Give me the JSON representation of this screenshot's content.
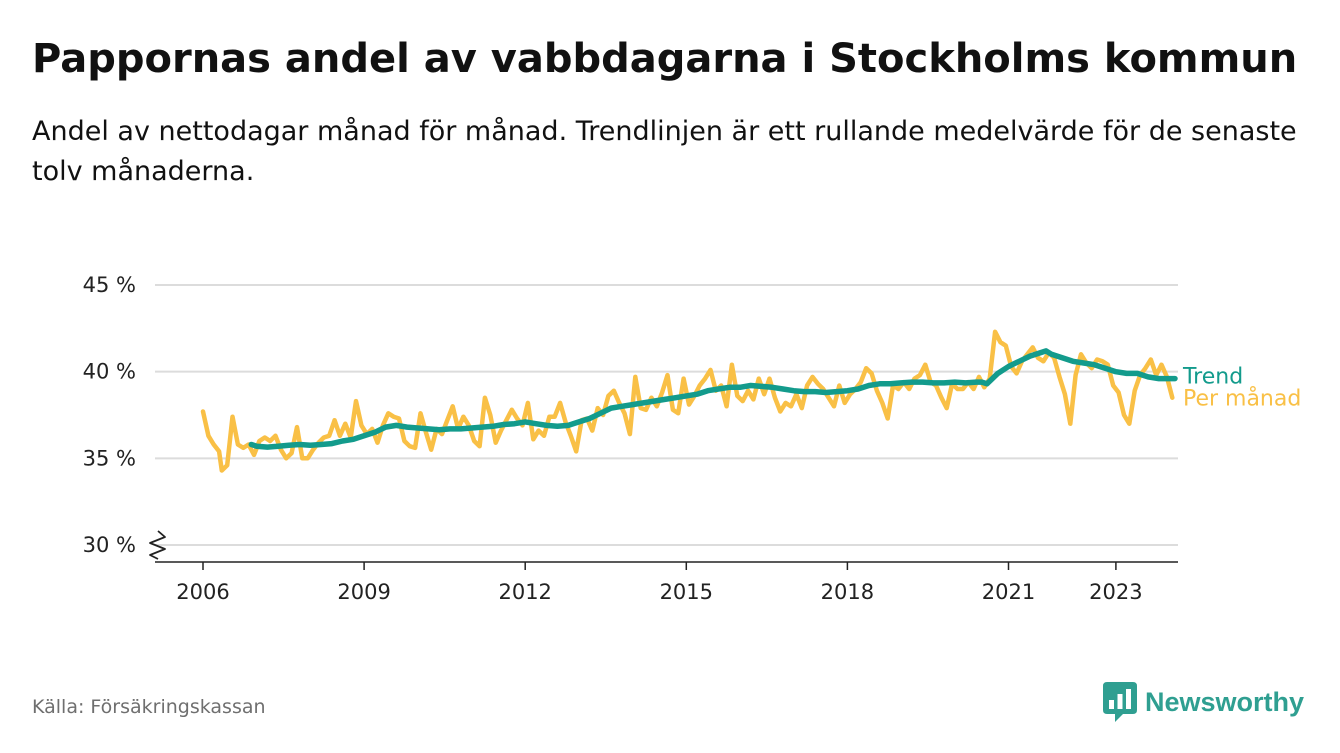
{
  "title": "Pappornas andel av vabbdagarna i Stockholms kommun",
  "subtitle": "Andel av nettodagar månad för månad. Trendlinjen är ett rullande medelvärde för de senaste tolv månaderna.",
  "source": "Källa: Försäkringskassan",
  "brand": {
    "name": "Newsworthy",
    "logo_icon": "bar-chart-icon",
    "color": "#2f9f91"
  },
  "colors": {
    "monthly": "#f9c046",
    "trend": "#139b8c",
    "grid": "#dcdcdc",
    "axis": "#222222"
  },
  "chart_data": {
    "type": "line",
    "title": "Pappornas andel av vabbdagarna i Stockholms kommun",
    "xlabel": "",
    "ylabel": "",
    "x_range": [
      2005.55,
      2024.0
    ],
    "ylim": [
      30,
      45
    ],
    "y_axis_break": true,
    "grid": "horizontal",
    "y_ticks": [
      {
        "value": 30,
        "label": "30 %"
      },
      {
        "value": 35,
        "label": "35 %"
      },
      {
        "value": 40,
        "label": "40 %"
      },
      {
        "value": 45,
        "label": "45 %"
      }
    ],
    "x_ticks": [
      {
        "value": 2006,
        "label": "2006"
      },
      {
        "value": 2009,
        "label": "2009"
      },
      {
        "value": 2012,
        "label": "2012"
      },
      {
        "value": 2015,
        "label": "2015"
      },
      {
        "value": 2018,
        "label": "2018"
      },
      {
        "value": 2021,
        "label": "2021"
      },
      {
        "value": 2023,
        "label": "2023"
      }
    ],
    "series": [
      {
        "name": "Per månad",
        "label": "Per månad",
        "points": [
          [
            2006.0,
            37.7
          ],
          [
            2006.1,
            36.3
          ],
          [
            2006.2,
            35.8
          ],
          [
            2006.3,
            35.4
          ],
          [
            2006.35,
            34.3
          ],
          [
            2006.45,
            34.6
          ],
          [
            2006.55,
            37.4
          ],
          [
            2006.65,
            35.8
          ],
          [
            2006.75,
            35.6
          ],
          [
            2006.85,
            35.8
          ],
          [
            2006.95,
            35.2
          ],
          [
            2007.05,
            36.0
          ],
          [
            2007.15,
            36.2
          ],
          [
            2007.25,
            36.0
          ],
          [
            2007.35,
            36.3
          ],
          [
            2007.45,
            35.5
          ],
          [
            2007.55,
            35.0
          ],
          [
            2007.65,
            35.3
          ],
          [
            2007.75,
            36.8
          ],
          [
            2007.85,
            35.0
          ],
          [
            2007.95,
            35.0
          ],
          [
            2008.05,
            35.5
          ],
          [
            2008.15,
            35.9
          ],
          [
            2008.25,
            36.2
          ],
          [
            2008.35,
            36.3
          ],
          [
            2008.45,
            37.2
          ],
          [
            2008.55,
            36.3
          ],
          [
            2008.65,
            37.0
          ],
          [
            2008.75,
            36.2
          ],
          [
            2008.85,
            38.3
          ],
          [
            2008.95,
            36.9
          ],
          [
            2009.05,
            36.4
          ],
          [
            2009.15,
            36.7
          ],
          [
            2009.25,
            35.9
          ],
          [
            2009.35,
            36.9
          ],
          [
            2009.45,
            37.6
          ],
          [
            2009.55,
            37.4
          ],
          [
            2009.65,
            37.3
          ],
          [
            2009.75,
            36.0
          ],
          [
            2009.85,
            35.7
          ],
          [
            2009.95,
            35.6
          ],
          [
            2010.05,
            37.6
          ],
          [
            2010.15,
            36.5
          ],
          [
            2010.25,
            35.5
          ],
          [
            2010.35,
            36.7
          ],
          [
            2010.45,
            36.4
          ],
          [
            2010.55,
            37.2
          ],
          [
            2010.65,
            38.0
          ],
          [
            2010.75,
            36.7
          ],
          [
            2010.85,
            37.4
          ],
          [
            2010.95,
            36.9
          ],
          [
            2011.05,
            36.0
          ],
          [
            2011.15,
            35.7
          ],
          [
            2011.25,
            38.5
          ],
          [
            2011.35,
            37.5
          ],
          [
            2011.45,
            35.9
          ],
          [
            2011.55,
            36.6
          ],
          [
            2011.65,
            37.2
          ],
          [
            2011.75,
            37.8
          ],
          [
            2011.85,
            37.3
          ],
          [
            2011.95,
            36.9
          ],
          [
            2012.05,
            38.2
          ],
          [
            2012.15,
            36.1
          ],
          [
            2012.25,
            36.6
          ],
          [
            2012.35,
            36.3
          ],
          [
            2012.45,
            37.4
          ],
          [
            2012.55,
            37.4
          ],
          [
            2012.65,
            38.2
          ],
          [
            2012.75,
            37.1
          ],
          [
            2012.85,
            36.3
          ],
          [
            2012.95,
            35.4
          ],
          [
            2013.05,
            37.2
          ],
          [
            2013.15,
            37.3
          ],
          [
            2013.25,
            36.6
          ],
          [
            2013.35,
            37.9
          ],
          [
            2013.45,
            37.5
          ],
          [
            2013.55,
            38.6
          ],
          [
            2013.65,
            38.9
          ],
          [
            2013.75,
            38.2
          ],
          [
            2013.85,
            37.6
          ],
          [
            2013.95,
            36.4
          ],
          [
            2014.05,
            39.7
          ],
          [
            2014.15,
            37.9
          ],
          [
            2014.25,
            37.8
          ],
          [
            2014.35,
            38.5
          ],
          [
            2014.45,
            38.0
          ],
          [
            2014.55,
            38.8
          ],
          [
            2014.65,
            39.8
          ],
          [
            2014.75,
            37.8
          ],
          [
            2014.85,
            37.6
          ],
          [
            2014.95,
            39.6
          ],
          [
            2015.05,
            38.1
          ],
          [
            2015.15,
            38.6
          ],
          [
            2015.25,
            39.2
          ],
          [
            2015.35,
            39.6
          ],
          [
            2015.45,
            40.1
          ],
          [
            2015.55,
            38.9
          ],
          [
            2015.65,
            39.2
          ],
          [
            2015.75,
            38.0
          ],
          [
            2015.85,
            40.4
          ],
          [
            2015.95,
            38.6
          ],
          [
            2016.05,
            38.3
          ],
          [
            2016.15,
            38.9
          ],
          [
            2016.25,
            38.4
          ],
          [
            2016.35,
            39.6
          ],
          [
            2016.45,
            38.7
          ],
          [
            2016.55,
            39.6
          ],
          [
            2016.65,
            38.5
          ],
          [
            2016.75,
            37.7
          ],
          [
            2016.85,
            38.2
          ],
          [
            2016.95,
            38.0
          ],
          [
            2017.05,
            38.7
          ],
          [
            2017.15,
            37.9
          ],
          [
            2017.25,
            39.2
          ],
          [
            2017.35,
            39.7
          ],
          [
            2017.45,
            39.3
          ],
          [
            2017.55,
            39.0
          ],
          [
            2017.65,
            38.5
          ],
          [
            2017.75,
            38.0
          ],
          [
            2017.85,
            39.2
          ],
          [
            2017.95,
            38.2
          ],
          [
            2018.05,
            38.7
          ],
          [
            2018.15,
            39.0
          ],
          [
            2018.25,
            39.4
          ],
          [
            2018.35,
            40.2
          ],
          [
            2018.45,
            39.9
          ],
          [
            2018.55,
            38.9
          ],
          [
            2018.65,
            38.2
          ],
          [
            2018.75,
            37.3
          ],
          [
            2018.85,
            39.2
          ],
          [
            2018.95,
            39.0
          ],
          [
            2019.05,
            39.4
          ],
          [
            2019.15,
            39.0
          ],
          [
            2019.25,
            39.6
          ],
          [
            2019.35,
            39.8
          ],
          [
            2019.45,
            40.4
          ],
          [
            2019.55,
            39.4
          ],
          [
            2019.65,
            39.2
          ],
          [
            2019.75,
            38.5
          ],
          [
            2019.85,
            37.9
          ],
          [
            2019.95,
            39.3
          ],
          [
            2020.05,
            39.0
          ],
          [
            2020.15,
            39.0
          ],
          [
            2020.25,
            39.4
          ],
          [
            2020.35,
            39.0
          ],
          [
            2020.45,
            39.7
          ],
          [
            2020.55,
            39.1
          ],
          [
            2020.65,
            39.6
          ],
          [
            2020.75,
            42.3
          ],
          [
            2020.85,
            41.7
          ],
          [
            2020.95,
            41.5
          ],
          [
            2021.05,
            40.3
          ],
          [
            2021.15,
            39.9
          ],
          [
            2021.25,
            40.6
          ],
          [
            2021.35,
            41.0
          ],
          [
            2021.45,
            41.4
          ],
          [
            2021.55,
            40.8
          ],
          [
            2021.65,
            40.6
          ],
          [
            2021.75,
            41.1
          ],
          [
            2021.85,
            40.8
          ],
          [
            2021.95,
            39.7
          ],
          [
            2022.05,
            38.7
          ],
          [
            2022.15,
            37.0
          ],
          [
            2022.25,
            39.8
          ],
          [
            2022.35,
            41.0
          ],
          [
            2022.45,
            40.5
          ],
          [
            2022.55,
            40.2
          ],
          [
            2022.65,
            40.7
          ],
          [
            2022.75,
            40.6
          ],
          [
            2022.85,
            40.4
          ],
          [
            2022.95,
            39.2
          ],
          [
            2023.05,
            38.8
          ],
          [
            2023.15,
            37.5
          ],
          [
            2023.25,
            37.0
          ],
          [
            2023.35,
            38.9
          ],
          [
            2023.45,
            39.8
          ],
          [
            2023.55,
            40.2
          ],
          [
            2023.65,
            40.7
          ],
          [
            2023.75,
            39.8
          ],
          [
            2023.85,
            40.4
          ],
          [
            2023.95,
            39.7
          ],
          [
            2024.05,
            38.5
          ]
        ]
      },
      {
        "name": "Trend",
        "label": "Trend",
        "points": [
          [
            2006.9,
            35.8
          ],
          [
            2007.0,
            35.7
          ],
          [
            2007.2,
            35.65
          ],
          [
            2007.4,
            35.7
          ],
          [
            2007.6,
            35.75
          ],
          [
            2007.8,
            35.8
          ],
          [
            2008.0,
            35.75
          ],
          [
            2008.2,
            35.8
          ],
          [
            2008.4,
            35.85
          ],
          [
            2008.6,
            36.0
          ],
          [
            2008.8,
            36.1
          ],
          [
            2009.0,
            36.3
          ],
          [
            2009.2,
            36.5
          ],
          [
            2009.4,
            36.8
          ],
          [
            2009.6,
            36.9
          ],
          [
            2009.8,
            36.8
          ],
          [
            2010.0,
            36.75
          ],
          [
            2010.2,
            36.7
          ],
          [
            2010.4,
            36.65
          ],
          [
            2010.6,
            36.7
          ],
          [
            2010.8,
            36.7
          ],
          [
            2011.0,
            36.75
          ],
          [
            2011.2,
            36.8
          ],
          [
            2011.4,
            36.85
          ],
          [
            2011.6,
            36.95
          ],
          [
            2011.8,
            37.0
          ],
          [
            2012.0,
            37.1
          ],
          [
            2012.2,
            37.0
          ],
          [
            2012.4,
            36.9
          ],
          [
            2012.6,
            36.85
          ],
          [
            2012.8,
            36.9
          ],
          [
            2013.0,
            37.1
          ],
          [
            2013.2,
            37.3
          ],
          [
            2013.4,
            37.6
          ],
          [
            2013.6,
            37.9
          ],
          [
            2013.8,
            38.0
          ],
          [
            2014.0,
            38.1
          ],
          [
            2014.2,
            38.2
          ],
          [
            2014.4,
            38.3
          ],
          [
            2014.6,
            38.4
          ],
          [
            2014.8,
            38.5
          ],
          [
            2015.0,
            38.6
          ],
          [
            2015.2,
            38.7
          ],
          [
            2015.4,
            38.9
          ],
          [
            2015.6,
            39.0
          ],
          [
            2015.8,
            39.1
          ],
          [
            2016.0,
            39.1
          ],
          [
            2016.2,
            39.2
          ],
          [
            2016.4,
            39.15
          ],
          [
            2016.6,
            39.1
          ],
          [
            2016.8,
            39.0
          ],
          [
            2017.0,
            38.9
          ],
          [
            2017.2,
            38.85
          ],
          [
            2017.4,
            38.85
          ],
          [
            2017.6,
            38.8
          ],
          [
            2017.8,
            38.85
          ],
          [
            2018.0,
            38.9
          ],
          [
            2018.2,
            39.0
          ],
          [
            2018.4,
            39.2
          ],
          [
            2018.6,
            39.3
          ],
          [
            2018.8,
            39.3
          ],
          [
            2019.0,
            39.35
          ],
          [
            2019.2,
            39.4
          ],
          [
            2019.4,
            39.4
          ],
          [
            2019.6,
            39.35
          ],
          [
            2019.8,
            39.35
          ],
          [
            2020.0,
            39.4
          ],
          [
            2020.2,
            39.35
          ],
          [
            2020.4,
            39.4
          ],
          [
            2020.5,
            39.4
          ],
          [
            2020.6,
            39.3
          ],
          [
            2020.8,
            39.9
          ],
          [
            2021.0,
            40.3
          ],
          [
            2021.2,
            40.6
          ],
          [
            2021.4,
            40.9
          ],
          [
            2021.6,
            41.1
          ],
          [
            2021.7,
            41.2
          ],
          [
            2021.8,
            41.0
          ],
          [
            2022.0,
            40.8
          ],
          [
            2022.2,
            40.6
          ],
          [
            2022.4,
            40.5
          ],
          [
            2022.6,
            40.4
          ],
          [
            2022.8,
            40.2
          ],
          [
            2023.0,
            40.0
          ],
          [
            2023.2,
            39.9
          ],
          [
            2023.4,
            39.9
          ],
          [
            2023.6,
            39.7
          ],
          [
            2023.8,
            39.6
          ],
          [
            2024.0,
            39.6
          ],
          [
            2024.1,
            39.6
          ]
        ]
      }
    ]
  }
}
